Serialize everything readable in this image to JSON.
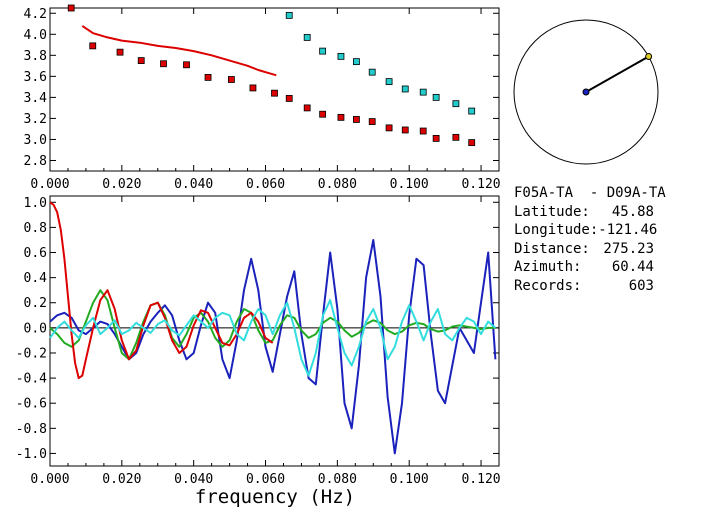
{
  "chart_data": [
    {
      "type": "scatter",
      "xlim": [
        0.0,
        0.125
      ],
      "ylim": [
        2.7,
        4.25
      ],
      "xticks": [
        "0.000",
        "0.020",
        "0.040",
        "0.060",
        "0.080",
        "0.100",
        "0.120"
      ],
      "yticks": [
        "2.8",
        "3.0",
        "3.2",
        "3.4",
        "3.6",
        "3.8",
        "4.0",
        "4.2"
      ],
      "grid": false,
      "series": [
        {
          "color": "#dd0000",
          "marker": "square",
          "x": [
            0.0059,
            0.0119,
            0.0195,
            0.0254,
            0.0316,
            0.038,
            0.044,
            0.0505,
            0.0565,
            0.0625,
            0.0666,
            0.0716,
            0.0759,
            0.081,
            0.0853,
            0.0897,
            0.0944,
            0.0989,
            0.1039,
            0.1075,
            0.113,
            0.1174
          ],
          "y": [
            4.25,
            3.89,
            3.83,
            3.75,
            3.72,
            3.71,
            3.59,
            3.57,
            3.49,
            3.44,
            3.39,
            3.3,
            3.24,
            3.21,
            3.19,
            3.17,
            3.11,
            3.09,
            3.08,
            3.01,
            3.02,
            2.97
          ]
        },
        {
          "color": "#dd0000",
          "style": "line",
          "x": [
            0.009,
            0.012,
            0.016,
            0.02,
            0.025,
            0.03,
            0.035,
            0.04,
            0.045,
            0.05,
            0.055,
            0.058,
            0.061,
            0.063
          ],
          "y": [
            4.08,
            4.01,
            3.97,
            3.94,
            3.92,
            3.89,
            3.87,
            3.84,
            3.8,
            3.75,
            3.7,
            3.66,
            3.63,
            3.61
          ]
        },
        {
          "color": "#22cccc",
          "marker": "square",
          "x": [
            0.0666,
            0.0716,
            0.0759,
            0.081,
            0.0853,
            0.0897,
            0.0944,
            0.0989,
            0.1039,
            0.1075,
            0.113,
            0.1174
          ],
          "y": [
            4.18,
            3.97,
            3.84,
            3.79,
            3.74,
            3.64,
            3.55,
            3.48,
            3.45,
            3.4,
            3.34,
            3.27
          ]
        }
      ]
    },
    {
      "type": "line",
      "xlim": [
        0.0,
        0.125
      ],
      "ylim": [
        -1.1,
        1.05
      ],
      "xticks": [
        "0.000",
        "0.020",
        "0.040",
        "0.060",
        "0.080",
        "0.100",
        "0.120"
      ],
      "yticks": [
        "1.0",
        "0.8",
        "0.6",
        "0.4",
        "0.2",
        "0.0",
        "-0.2",
        "-0.4",
        "-0.6",
        "-0.8",
        "-1.0"
      ],
      "xlabel": "frequency (Hz)",
      "grid": false,
      "zero_line": true,
      "series": [
        {
          "color": "#1a22bb",
          "x": [
            0.0,
            0.002,
            0.004,
            0.006,
            0.008,
            0.01,
            0.012,
            0.014,
            0.016,
            0.018,
            0.02,
            0.022,
            0.024,
            0.026,
            0.028,
            0.03,
            0.032,
            0.034,
            0.036,
            0.038,
            0.04,
            0.042,
            0.044,
            0.046,
            0.048,
            0.05,
            0.052,
            0.054,
            0.056,
            0.058,
            0.06,
            0.062,
            0.064,
            0.066,
            0.068,
            0.07,
            0.072,
            0.074,
            0.076,
            0.078,
            0.08,
            0.082,
            0.084,
            0.086,
            0.088,
            0.09,
            0.092,
            0.094,
            0.096,
            0.098,
            0.1,
            0.102,
            0.104,
            0.106,
            0.108,
            0.11,
            0.112,
            0.114,
            0.116,
            0.118,
            0.12,
            0.122,
            0.124
          ],
          "y": [
            0.05,
            0.1,
            0.12,
            0.08,
            -0.02,
            -0.05,
            0.0,
            0.05,
            0.03,
            -0.05,
            -0.15,
            -0.25,
            -0.2,
            -0.05,
            0.05,
            0.12,
            0.18,
            0.1,
            -0.1,
            -0.25,
            -0.2,
            0.02,
            0.2,
            0.12,
            -0.25,
            -0.4,
            -0.1,
            0.3,
            0.55,
            0.3,
            -0.15,
            -0.35,
            -0.05,
            0.25,
            0.45,
            -0.05,
            -0.4,
            -0.45,
            0.1,
            0.6,
            0.15,
            -0.6,
            -0.8,
            -0.3,
            0.4,
            0.7,
            0.25,
            -0.55,
            -1.0,
            -0.6,
            0.1,
            0.55,
            0.5,
            -0.05,
            -0.5,
            -0.6,
            -0.3,
            0.0,
            -0.1,
            -0.2,
            0.2,
            0.6,
            -0.25
          ]
        },
        {
          "color": "#22aa22",
          "x": [
            0.0,
            0.002,
            0.004,
            0.006,
            0.008,
            0.01,
            0.012,
            0.014,
            0.016,
            0.018,
            0.02,
            0.022,
            0.024,
            0.026,
            0.028,
            0.03,
            0.032,
            0.034,
            0.036,
            0.038,
            0.04,
            0.042,
            0.044,
            0.046,
            0.048,
            0.05,
            0.052,
            0.054,
            0.056,
            0.058,
            0.06,
            0.062,
            0.064,
            0.066,
            0.068,
            0.07,
            0.072,
            0.074,
            0.076,
            0.078,
            0.08,
            0.082,
            0.084,
            0.086,
            0.088,
            0.09,
            0.092,
            0.094,
            0.096,
            0.098,
            0.1,
            0.102,
            0.104,
            0.106,
            0.108,
            0.11,
            0.112,
            0.114,
            0.116,
            0.118,
            0.12,
            0.122,
            0.124
          ],
          "y": [
            0.0,
            -0.05,
            -0.12,
            -0.15,
            -0.1,
            0.05,
            0.2,
            0.3,
            0.22,
            0.0,
            -0.2,
            -0.25,
            -0.12,
            0.05,
            0.18,
            0.2,
            0.1,
            -0.08,
            -0.15,
            -0.05,
            0.08,
            0.12,
            0.05,
            -0.08,
            -0.15,
            -0.1,
            0.05,
            0.15,
            0.12,
            -0.02,
            -0.12,
            -0.1,
            0.02,
            0.1,
            0.08,
            -0.02,
            -0.08,
            -0.05,
            0.04,
            0.08,
            0.05,
            -0.02,
            -0.07,
            -0.04,
            0.03,
            0.06,
            0.04,
            -0.02,
            -0.05,
            -0.03,
            0.02,
            0.04,
            0.03,
            -0.01,
            -0.03,
            -0.02,
            0.01,
            0.02,
            0.01,
            0.0,
            -0.01,
            0.0,
            0.0
          ]
        },
        {
          "color": "#dd0000",
          "x": [
            0.0,
            0.001,
            0.002,
            0.003,
            0.004,
            0.005,
            0.006,
            0.007,
            0.008,
            0.009,
            0.01,
            0.012,
            0.014,
            0.016,
            0.018,
            0.02,
            0.022,
            0.024,
            0.026,
            0.028,
            0.03,
            0.032,
            0.034,
            0.036,
            0.038,
            0.04,
            0.042,
            0.044,
            0.046,
            0.048,
            0.05,
            0.052,
            0.054,
            0.056,
            0.058,
            0.06,
            0.062
          ],
          "y": [
            1.0,
            0.98,
            0.92,
            0.78,
            0.55,
            0.25,
            -0.05,
            -0.28,
            -0.4,
            -0.38,
            -0.25,
            0.0,
            0.22,
            0.3,
            0.15,
            -0.1,
            -0.25,
            -0.18,
            0.02,
            0.18,
            0.2,
            0.08,
            -0.1,
            -0.2,
            -0.15,
            0.02,
            0.14,
            0.12,
            0.0,
            -0.12,
            -0.14,
            -0.05,
            0.08,
            0.12,
            0.05,
            -0.08,
            -0.12
          ]
        },
        {
          "color": "#33dddd",
          "x": [
            0.0,
            0.002,
            0.004,
            0.006,
            0.008,
            0.01,
            0.012,
            0.014,
            0.016,
            0.018,
            0.02,
            0.022,
            0.024,
            0.026,
            0.028,
            0.03,
            0.032,
            0.034,
            0.036,
            0.038,
            0.04,
            0.042,
            0.044,
            0.046,
            0.048,
            0.05,
            0.052,
            0.054,
            0.056,
            0.058,
            0.06,
            0.062,
            0.064,
            0.066,
            0.068,
            0.07,
            0.072,
            0.074,
            0.076,
            0.078,
            0.08,
            0.082,
            0.084,
            0.086,
            0.088,
            0.09,
            0.092,
            0.094,
            0.096,
            0.098,
            0.1,
            0.102,
            0.104,
            0.106,
            0.108,
            0.11,
            0.112,
            0.114,
            0.116,
            0.118,
            0.12,
            0.122,
            0.124
          ],
          "y": [
            -0.08,
            0.0,
            0.05,
            -0.02,
            -0.08,
            0.02,
            0.08,
            -0.05,
            0.0,
            0.06,
            -0.05,
            -0.02,
            0.04,
            0.0,
            -0.04,
            0.03,
            0.06,
            -0.02,
            -0.06,
            0.02,
            0.1,
            0.05,
            0.0,
            0.08,
            0.12,
            0.1,
            -0.05,
            -0.1,
            0.05,
            0.15,
            0.1,
            -0.05,
            0.1,
            0.2,
            0.0,
            -0.25,
            -0.38,
            -0.2,
            0.1,
            0.22,
            0.0,
            -0.2,
            -0.3,
            -0.15,
            0.05,
            0.15,
            0.0,
            -0.25,
            -0.15,
            0.05,
            0.18,
            0.05,
            -0.1,
            0.05,
            0.15,
            -0.05,
            -0.1,
            0.0,
            0.08,
            0.05,
            -0.05,
            0.05,
            0.0
          ]
        }
      ]
    }
  ],
  "map_inset": {
    "outline_color": "#000000",
    "station_a_color": "#1a22bb",
    "station_b_color": "#ddcc22",
    "azimuth_deg": 60.44
  },
  "info": {
    "title": "F05A-TA  - D09A-TA",
    "rows": [
      {
        "key": "Latitude:",
        "value": "45.88"
      },
      {
        "key": "Longitude:",
        "value": "-121.46"
      },
      {
        "key": "Distance:",
        "value": "275.23"
      },
      {
        "key": "Azimuth:",
        "value": "60.44"
      },
      {
        "key": "Records:",
        "value": "603"
      }
    ]
  }
}
